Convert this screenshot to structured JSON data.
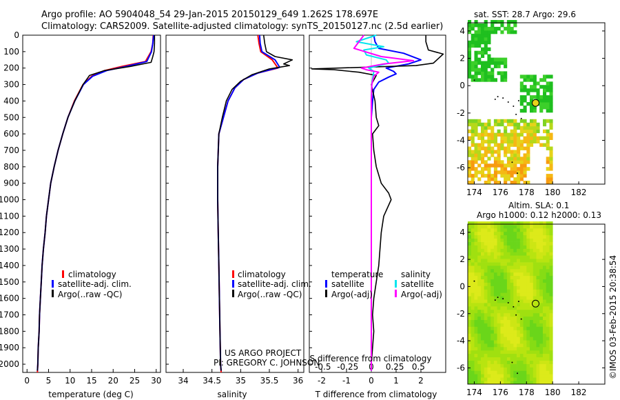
{
  "header": {
    "line1": "Argo profile: AO 5904048_54 29-Jan-2015 20150129_649 1.262S 178.697E",
    "line2": "Climatology: CARS2009. Satellite-adjusted climatology: synTS_20150127.nc (2.5d earlier)"
  },
  "colors": {
    "climatology": "#ff0000",
    "satellite": "#0000ff",
    "argo": "#000000",
    "satellite_salinity": "#00e5ee",
    "argo_salinity_diff": "#ff00ff"
  },
  "credits": {
    "project": "US ARGO PROJECT",
    "pi": "PI: GREGORY C. JOHNSON"
  },
  "footer": {
    "stamp": "©IMOS 03-Feb-2015 20:38:54"
  },
  "legends": {
    "profile": [
      "climatology",
      "satellite-adj. clim.",
      "Argo(..raw -QC)"
    ],
    "diff": {
      "temperature_title": "temperature",
      "salinity_title": "salinity",
      "temperature_items": [
        "satellite",
        "Argo(-adj)"
      ],
      "salinity_items": [
        "satellite",
        "Argo(-adj)"
      ]
    }
  },
  "maps": {
    "top_title": "sat. SST: 28.7 Argo: 29.6",
    "bottom_title_line1": "Altim. SLA: 0.1",
    "bottom_title_line2": "Argo h1000: 0.12 h2000: 0.13",
    "x_ticks": [
      174,
      176,
      178,
      180,
      182
    ],
    "y_ticks": [
      4,
      2,
      0,
      -2,
      -4,
      -6
    ],
    "xlim": [
      173.5,
      184
    ],
    "ylim": [
      -7.2,
      4.6
    ],
    "float_lon": 178.697,
    "float_lat": -1.262
  },
  "chart_data": [
    {
      "type": "line",
      "xlabel": "temperature (deg C)",
      "xlim": [
        -1,
        31
      ],
      "x_ticks": [
        0,
        5,
        10,
        15,
        20,
        25,
        30
      ],
      "ylim": [
        2050,
        0
      ],
      "y_ticks": [
        0,
        100,
        200,
        300,
        400,
        500,
        600,
        700,
        800,
        900,
        1000,
        1100,
        1200,
        1300,
        1400,
        1500,
        1600,
        1700,
        1800,
        1900,
        2000
      ],
      "series": [
        {
          "name": "climatology",
          "color": "climatology",
          "points": [
            [
              29.3,
              0
            ],
            [
              29.2,
              50
            ],
            [
              28.8,
              100
            ],
            [
              27.5,
              160
            ],
            [
              22,
              190
            ],
            [
              18,
              215
            ],
            [
              15,
              250
            ],
            [
              13,
              300
            ],
            [
              11,
              400
            ],
            [
              9.5,
              500
            ],
            [
              8.3,
              600
            ],
            [
              7.2,
              700
            ],
            [
              6.3,
              800
            ],
            [
              5.5,
              900
            ],
            [
              5,
              1000
            ],
            [
              4.5,
              1100
            ],
            [
              4.2,
              1200
            ],
            [
              3.8,
              1300
            ],
            [
              3.5,
              1400
            ],
            [
              3.3,
              1500
            ],
            [
              3.1,
              1600
            ],
            [
              2.9,
              1700
            ],
            [
              2.8,
              1800
            ],
            [
              2.6,
              1900
            ],
            [
              2.5,
              2000
            ],
            [
              2.4,
              2050
            ]
          ]
        },
        {
          "name": "satellite-adj. clim.",
          "color": "satellite",
          "points": [
            [
              29.4,
              0
            ],
            [
              29.2,
              50
            ],
            [
              28.9,
              100
            ],
            [
              27.8,
              160
            ],
            [
              23,
              190
            ],
            [
              18.5,
              215
            ],
            [
              15.2,
              250
            ],
            [
              13.1,
              300
            ],
            [
              11.1,
              400
            ],
            [
              9.5,
              500
            ],
            [
              8.3,
              600
            ],
            [
              7.2,
              700
            ],
            [
              6.3,
              800
            ],
            [
              5.5,
              900
            ],
            [
              5,
              1000
            ],
            [
              4.5,
              1100
            ],
            [
              4.2,
              1200
            ],
            [
              3.8,
              1300
            ],
            [
              3.5,
              1400
            ],
            [
              3.3,
              1500
            ],
            [
              3.1,
              1600
            ],
            [
              2.9,
              1700
            ],
            [
              2.8,
              1800
            ],
            [
              2.6,
              1900
            ],
            [
              2.5,
              2000
            ],
            [
              2.4,
              2040
            ]
          ]
        },
        {
          "name": "Argo(..raw -QC)",
          "color": "argo",
          "points": [
            [
              29.6,
              0
            ],
            [
              29.6,
              50
            ],
            [
              29.5,
              100
            ],
            [
              29.2,
              130
            ],
            [
              28.8,
              165
            ],
            [
              24,
              190
            ],
            [
              18,
              215
            ],
            [
              14.5,
              245
            ],
            [
              13,
              300
            ],
            [
              11.1,
              400
            ],
            [
              9.5,
              500
            ],
            [
              8.3,
              600
            ],
            [
              7.2,
              700
            ],
            [
              6.3,
              800
            ],
            [
              5.5,
              900
            ],
            [
              5,
              1000
            ],
            [
              4.5,
              1100
            ],
            [
              4.2,
              1200
            ],
            [
              3.8,
              1300
            ],
            [
              3.5,
              1400
            ],
            [
              3.3,
              1500
            ],
            [
              3.1,
              1600
            ],
            [
              2.9,
              1700
            ],
            [
              2.8,
              1800
            ],
            [
              2.6,
              1900
            ],
            [
              2.5,
              2000
            ],
            [
              2.4,
              2040
            ]
          ]
        }
      ]
    },
    {
      "type": "line",
      "xlabel": "salinity",
      "xlim": [
        33.7,
        36.1
      ],
      "x_ticks": [
        34,
        34.5,
        35,
        35.5,
        36
      ],
      "ylim": [
        2050,
        0
      ],
      "series": [
        {
          "name": "climatology",
          "color": "climatology",
          "points": [
            [
              35.3,
              0
            ],
            [
              35.32,
              50
            ],
            [
              35.35,
              100
            ],
            [
              35.55,
              150
            ],
            [
              35.65,
              200
            ],
            [
              35.3,
              230
            ],
            [
              35.05,
              270
            ],
            [
              34.9,
              320
            ],
            [
              34.78,
              400
            ],
            [
              34.7,
              500
            ],
            [
              34.62,
              600
            ],
            [
              34.6,
              800
            ],
            [
              34.6,
              1000
            ],
            [
              34.61,
              1200
            ],
            [
              34.62,
              1400
            ],
            [
              34.63,
              1600
            ],
            [
              34.64,
              1800
            ],
            [
              34.65,
              2000
            ],
            [
              34.66,
              2050
            ]
          ]
        },
        {
          "name": "satellite-adj. clim.",
          "color": "satellite",
          "points": [
            [
              35.33,
              0
            ],
            [
              35.34,
              50
            ],
            [
              35.37,
              100
            ],
            [
              35.6,
              150
            ],
            [
              35.68,
              195
            ],
            [
              35.3,
              230
            ],
            [
              35.05,
              270
            ],
            [
              34.9,
              320
            ],
            [
              34.78,
              400
            ],
            [
              34.7,
              500
            ],
            [
              34.62,
              600
            ],
            [
              34.6,
              800
            ],
            [
              34.6,
              1000
            ],
            [
              34.61,
              1200
            ],
            [
              34.62,
              1400
            ],
            [
              34.63,
              1600
            ],
            [
              34.64,
              1800
            ],
            [
              34.65,
              2000
            ],
            [
              34.66,
              2040
            ]
          ]
        },
        {
          "name": "Argo(..raw -QC)",
          "color": "argo",
          "points": [
            [
              35.4,
              0
            ],
            [
              35.42,
              50
            ],
            [
              35.45,
              100
            ],
            [
              35.6,
              130
            ],
            [
              35.9,
              150
            ],
            [
              35.75,
              175
            ],
            [
              35.85,
              185
            ],
            [
              35.5,
              205
            ],
            [
              35.2,
              240
            ],
            [
              35.0,
              280
            ],
            [
              34.85,
              330
            ],
            [
              34.75,
              400
            ],
            [
              34.68,
              500
            ],
            [
              34.62,
              600
            ],
            [
              34.6,
              800
            ],
            [
              34.6,
              1000
            ],
            [
              34.61,
              1200
            ],
            [
              34.62,
              1400
            ],
            [
              34.63,
              1600
            ],
            [
              34.64,
              1800
            ],
            [
              34.65,
              2000
            ],
            [
              34.66,
              2040
            ]
          ]
        }
      ]
    },
    {
      "type": "line",
      "xlabel": "T difference from climatology",
      "xlabel_top": "S difference from climatology",
      "xlim": [
        -2.5,
        3
      ],
      "x_ticks": [
        -2,
        -1,
        0,
        1,
        2
      ],
      "top_ticks": [
        {
          "t": -1.95,
          "label": "-0.5"
        },
        {
          "t": -0.95,
          "label": "-0.25"
        },
        {
          "t": 0,
          "label": "0"
        },
        {
          "t": 0.95,
          "label": "0.25"
        },
        {
          "t": 1.9,
          "label": "0.5"
        }
      ],
      "ylim": [
        2050,
        0
      ],
      "series": [
        {
          "name": "satellite",
          "group": "temperature",
          "color": "satellite",
          "points": [
            [
              0.1,
              0
            ],
            [
              0.15,
              40
            ],
            [
              0.3,
              80
            ],
            [
              1.3,
              110
            ],
            [
              2.0,
              150
            ],
            [
              1.5,
              175
            ],
            [
              0.6,
              200
            ],
            [
              0.9,
              220
            ],
            [
              1.0,
              235
            ],
            [
              0.7,
              255
            ],
            [
              0.3,
              285
            ],
            [
              0.1,
              330
            ],
            [
              0.05,
              400
            ],
            [
              0,
              500
            ],
            [
              0,
              600
            ],
            [
              0,
              800
            ],
            [
              0,
              1000
            ],
            [
              0,
              1200
            ],
            [
              0,
              1400
            ],
            [
              0,
              1600
            ],
            [
              0,
              1800
            ],
            [
              0,
              2000
            ],
            [
              0,
              2040
            ]
          ]
        },
        {
          "name": "Argo(-adj)",
          "group": "temperature",
          "color": "argo",
          "points": [
            [
              2.2,
              0
            ],
            [
              2.2,
              40
            ],
            [
              2.3,
              90
            ],
            [
              2.9,
              115
            ],
            [
              2.5,
              170
            ],
            [
              1.8,
              185
            ],
            [
              -2.4,
              205
            ],
            [
              -1.5,
              210
            ],
            [
              -0.5,
              225
            ],
            [
              0.2,
              245
            ],
            [
              0.0,
              300
            ],
            [
              0.15,
              400
            ],
            [
              0.2,
              500
            ],
            [
              0.3,
              550
            ],
            [
              0.05,
              600
            ],
            [
              0.1,
              700
            ],
            [
              0.2,
              800
            ],
            [
              0.4,
              900
            ],
            [
              0.7,
              960
            ],
            [
              0.8,
              1000
            ],
            [
              0.5,
              1100
            ],
            [
              0.4,
              1200
            ],
            [
              0.35,
              1300
            ],
            [
              0.3,
              1400
            ],
            [
              0.2,
              1500
            ],
            [
              0.1,
              1600
            ],
            [
              0.05,
              1700
            ],
            [
              0.1,
              1800
            ],
            [
              0.05,
              1900
            ],
            [
              0,
              2000
            ],
            [
              0,
              2040
            ]
          ]
        },
        {
          "name": "satellite",
          "group": "salinity",
          "color": "satellite_salinity",
          "points": [
            [
              0.2,
              0
            ],
            [
              -0.6,
              40
            ],
            [
              0.5,
              70
            ],
            [
              -0.3,
              90
            ],
            [
              -0.2,
              120
            ],
            [
              0.6,
              150
            ],
            [
              0.7,
              170
            ],
            [
              -0.1,
              200
            ],
            [
              0.1,
              220
            ],
            [
              0.02,
              300
            ],
            [
              0,
              400
            ],
            [
              0,
              600
            ],
            [
              0,
              800
            ],
            [
              0,
              1000
            ],
            [
              0,
              1200
            ],
            [
              0,
              1400
            ],
            [
              0,
              1600
            ],
            [
              0,
              1800
            ],
            [
              0,
              2000
            ],
            [
              0,
              2040
            ]
          ]
        },
        {
          "name": "Argo(-adj)",
          "group": "salinity",
          "color": "argo_salinity_diff",
          "points": [
            [
              -0.3,
              0
            ],
            [
              -0.5,
              40
            ],
            [
              -0.7,
              80
            ],
            [
              0.4,
              130
            ],
            [
              1.7,
              155
            ],
            [
              0.5,
              175
            ],
            [
              -0.4,
              200
            ],
            [
              -0.2,
              210
            ],
            [
              0.3,
              225
            ],
            [
              0.1,
              250
            ],
            [
              0.02,
              300
            ],
            [
              0,
              400
            ],
            [
              0,
              600
            ],
            [
              0,
              800
            ],
            [
              0,
              1000
            ],
            [
              0,
              1200
            ],
            [
              0,
              1400
            ],
            [
              0,
              1600
            ],
            [
              0,
              1800
            ],
            [
              0,
              2000
            ],
            [
              0,
              2040
            ]
          ]
        }
      ]
    }
  ]
}
